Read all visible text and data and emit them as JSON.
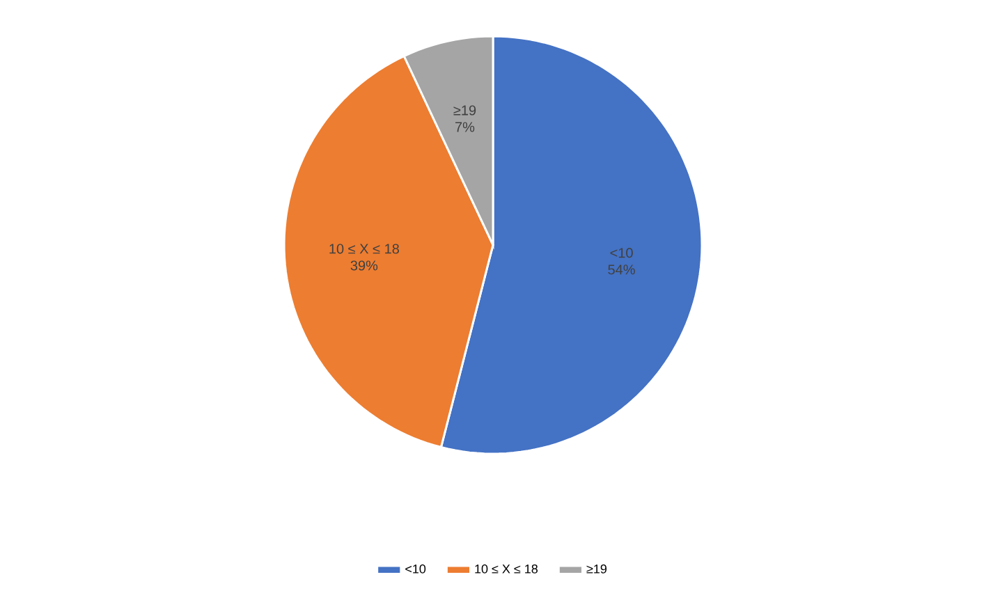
{
  "chart_data": {
    "type": "pie",
    "categories": [
      "<10",
      "10 ≤ X ≤ 18",
      "≥19"
    ],
    "values": [
      54,
      39,
      7
    ],
    "colors": [
      "#4472c4",
      "#ed7d31",
      "#a5a5a5"
    ],
    "value_labels": [
      "54%",
      "39%",
      "7%"
    ],
    "legend": "bottom"
  }
}
